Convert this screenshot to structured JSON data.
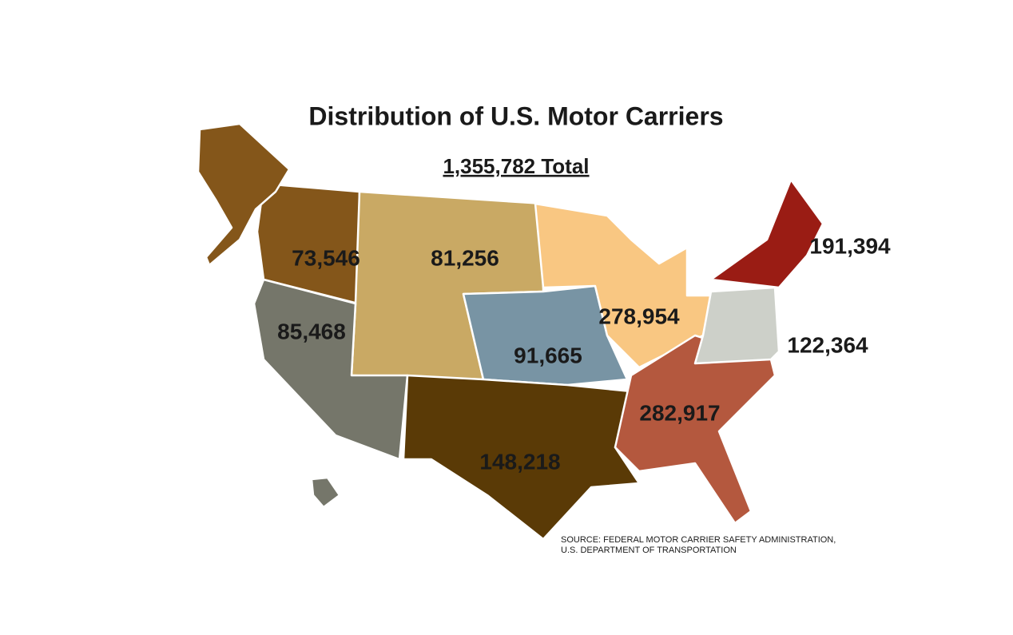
{
  "title": "Distribution of U.S. Motor Carriers",
  "total": "1,355,782 Total",
  "regions": [
    {
      "label": "73,546",
      "color": "#84561a"
    },
    {
      "label": "81,256",
      "color": "#c9a964"
    },
    {
      "label": "85,468",
      "color": "#75766a"
    },
    {
      "label": "91,665",
      "color": "#7894a4"
    },
    {
      "label": "278,954",
      "color": "#f9c782"
    },
    {
      "label": "148,218",
      "color": "#5a3a06"
    },
    {
      "label": "282,917",
      "color": "#b4583e"
    },
    {
      "label": "191,394",
      "color": "#9a1c14"
    },
    {
      "label": "122,364",
      "color": "#cdd0c9"
    }
  ],
  "source": [
    "SOURCE: FEDERAL MOTOR CARRIER SAFETY ADMINISTRATION,",
    "U.S. DEPARTMENT OF TRANSPORTATION"
  ]
}
